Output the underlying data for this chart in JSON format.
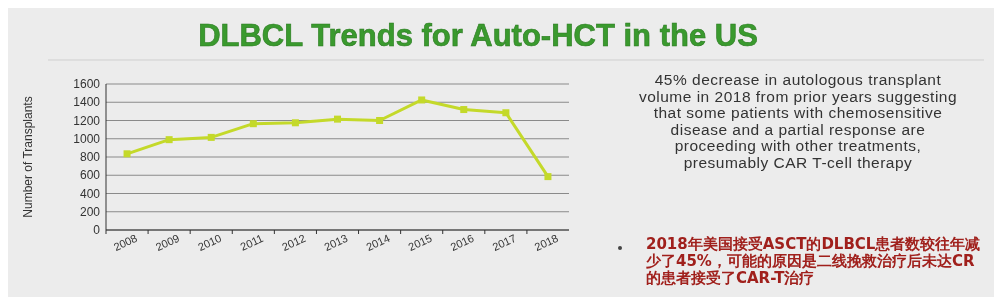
{
  "chart_data": {
    "type": "line",
    "title": "DLBCL Trends for Auto-HCT in the US",
    "ylabel": "Number of Transplants",
    "categories": [
      "2008",
      "2009",
      "2010",
      "2011",
      "2012",
      "2013",
      "2014",
      "2015",
      "2016",
      "2017",
      "2018"
    ],
    "series": [
      {
        "color": "#c4d92a",
        "values": [
          835,
          990,
          1015,
          1165,
          1175,
          1215,
          1200,
          1425,
          1320,
          1285,
          585
        ]
      }
    ],
    "ylim": [
      0,
      1600
    ],
    "yticks": [
      0,
      200,
      400,
      600,
      800,
      1000,
      1200,
      1400,
      1600
    ],
    "grid": "y",
    "marker": "square",
    "line_style": "solid",
    "annotations": [
      "45% decrease in autologous transplant volume in 2018 from prior years suggesting that some patients with chemosensitive disease and a partial response are proceeding with other treatments, presumably CAR T-cell therapy",
      "2018年美国接受ASCT的DLBCL患者数较往年减少了45%，可能的原因是二线挽救治疗后未达CR的患者接受了CAR-T治疗"
    ]
  }
}
